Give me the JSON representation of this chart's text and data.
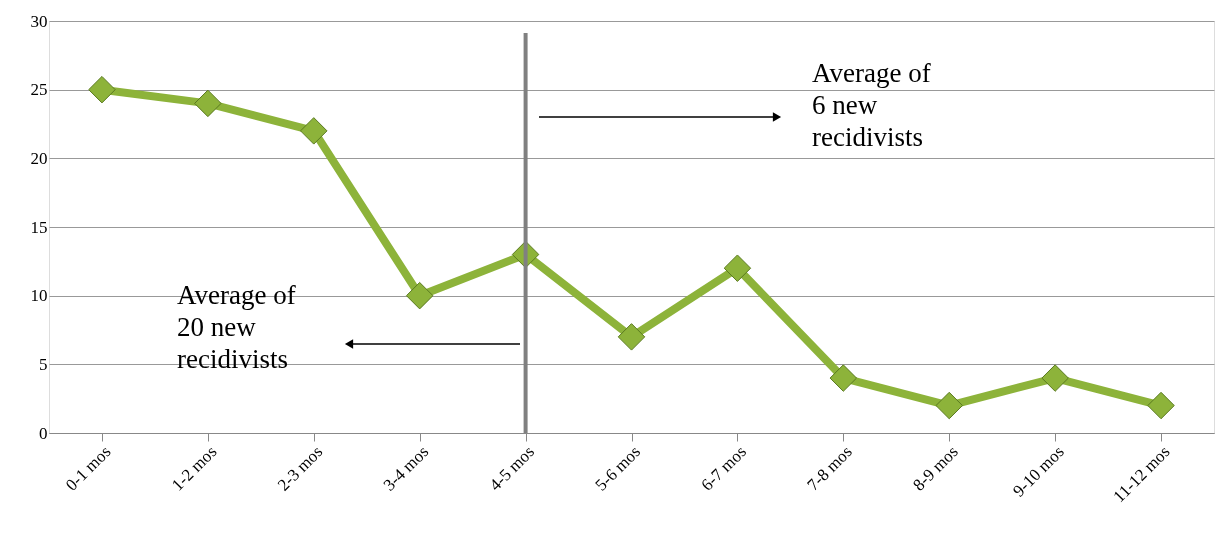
{
  "chart_data": {
    "type": "line",
    "categories": [
      "0-1 mos",
      "1-2 mos",
      "2-3 mos",
      "3-4 mos",
      "4-5 mos",
      "5-6 mos",
      "6-7 mos",
      "7-8 mos",
      "8-9 mos",
      "9-10 mos",
      "11-12 mos"
    ],
    "series": [
      {
        "color": "#8db33a",
        "values": [
          25,
          24,
          22,
          10,
          13,
          7,
          12,
          4,
          2,
          4,
          2
        ]
      }
    ],
    "ylim": [
      0,
      30
    ],
    "yticks": [
      0,
      5,
      10,
      15,
      20,
      25,
      30
    ],
    "grid": "y",
    "marker": "diamond",
    "line_style": "solid",
    "ref_lines": [
      {
        "axis": "x",
        "value": "4-5 mos",
        "color": "#808080"
      }
    ],
    "annotations": [
      "Average of\n6 new\nrecidivists",
      "Average of\n20 new\nrecidivists"
    ]
  }
}
